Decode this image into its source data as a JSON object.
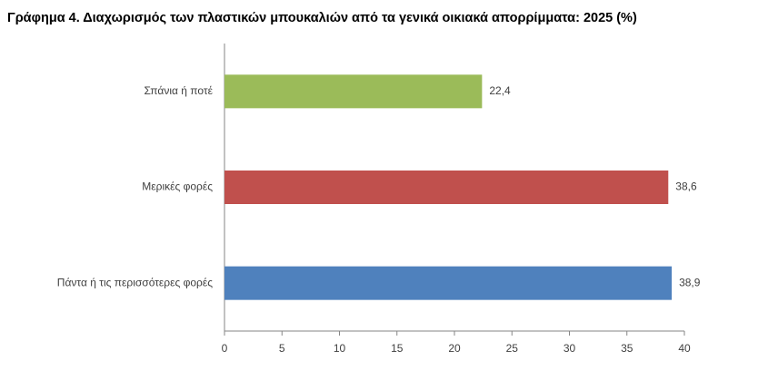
{
  "chart_data": {
    "type": "hbar",
    "title": "Γράφημα 4. Διαχωρισμός των πλαστικών μπουκαλιών από τα γενικά οικιακά απορρίμματα: 2025 (%)",
    "categories": [
      "Σπάνια ή ποτέ",
      "Μερικές φορές",
      "Πάντα ή τις περισσότερες φορές"
    ],
    "values": [
      22.4,
      38.6,
      38.9
    ],
    "value_labels": [
      "22,4",
      "38,6",
      "38,9"
    ],
    "colors": [
      "#9bbb59",
      "#c0504d",
      "#4f81bd"
    ],
    "xlim": [
      0,
      40
    ],
    "xticks": [
      0,
      5,
      10,
      15,
      20,
      25,
      30,
      35,
      40
    ],
    "grid": false
  }
}
